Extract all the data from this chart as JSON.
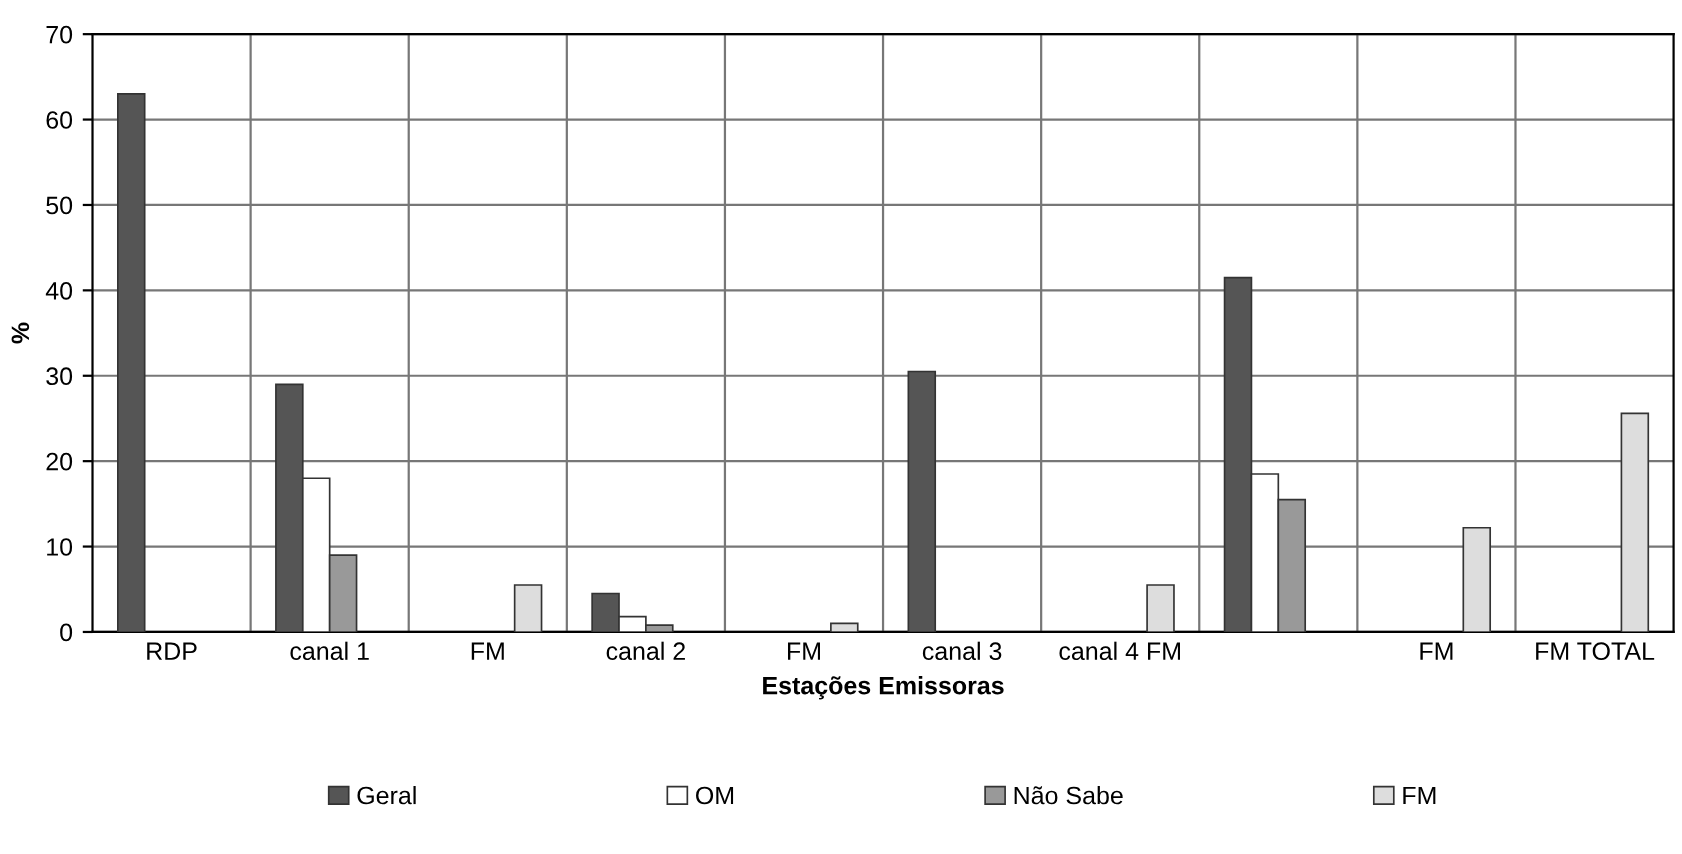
{
  "chart_data": {
    "type": "bar",
    "xlabel": "Estações Emissoras",
    "ylabel": "%",
    "categories": [
      "RDP",
      "canal 1",
      "FM",
      "canal 2",
      "FM",
      "canal 3",
      "canal 4 FM",
      null,
      "FM",
      "FM TOTAL"
    ],
    "series": [
      {
        "name": "Geral",
        "color": "#555555",
        "values": [
          63,
          29,
          null,
          4.5,
          null,
          30.5,
          null,
          41.5,
          null,
          null
        ]
      },
      {
        "name": "OM",
        "color": "#ffffff",
        "values": [
          null,
          18,
          null,
          1.8,
          null,
          null,
          null,
          18.5,
          null,
          null
        ]
      },
      {
        "name": "Não Sabe",
        "color": "#999999",
        "values": [
          null,
          9,
          null,
          0.8,
          null,
          null,
          null,
          15.5,
          null,
          null
        ]
      },
      {
        "name": "FM",
        "color": "#dddddd",
        "values": [
          null,
          null,
          5.5,
          null,
          1,
          null,
          5.5,
          null,
          12.2,
          25.6
        ]
      }
    ],
    "ylim": [
      0,
      70
    ],
    "yticks": [
      0,
      10,
      20,
      30,
      40,
      50,
      60,
      70
    ],
    "grid": true,
    "legend": "bottom"
  }
}
